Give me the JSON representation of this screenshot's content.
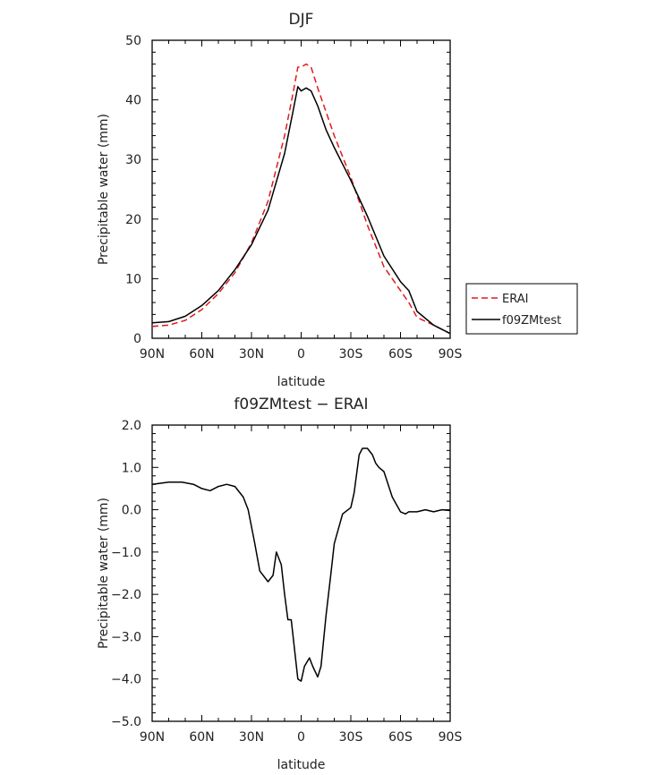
{
  "chart_data": [
    {
      "type": "line",
      "title": "DJF",
      "xlabel": "latitude",
      "ylabel": "Precipitable water (mm)",
      "x_unit_note": "latitude in degrees, positive = North",
      "xlim": [
        90,
        -90
      ],
      "ylim": [
        0,
        50
      ],
      "x_ticks": [
        90,
        60,
        30,
        0,
        -30,
        -60,
        -90
      ],
      "x_tick_labels": [
        "90N",
        "60N",
        "30N",
        "0",
        "30S",
        "60S",
        "90S"
      ],
      "y_ticks": [
        0,
        10,
        20,
        30,
        40,
        50
      ],
      "y_tick_labels": [
        "0",
        "10",
        "20",
        "30",
        "40",
        "50"
      ],
      "legend_position": "outside-right",
      "series": [
        {
          "name": "ERAI",
          "color": "#e41a1c",
          "dash": "dashed",
          "x": [
            90,
            80,
            70,
            60,
            50,
            40,
            30,
            20,
            10,
            5,
            2,
            0,
            -3,
            -6,
            -10,
            -15,
            -20,
            -30,
            -40,
            -50,
            -60,
            -65,
            -70,
            -80,
            -90
          ],
          "y": [
            2.0,
            2.2,
            3.0,
            4.8,
            7.5,
            11,
            16,
            23,
            34,
            41,
            45.5,
            45.5,
            46,
            45.5,
            42,
            38,
            34,
            27,
            19,
            12,
            8,
            6,
            3.5,
            2.2,
            0.8
          ]
        },
        {
          "name": "f09ZMtest",
          "color": "#000000",
          "dash": "solid",
          "x": [
            90,
            80,
            70,
            60,
            50,
            40,
            30,
            20,
            10,
            5,
            2,
            0,
            -3,
            -6,
            -10,
            -15,
            -20,
            -30,
            -40,
            -50,
            -60,
            -65,
            -70,
            -80,
            -90
          ],
          "y": [
            2.6,
            2.8,
            3.7,
            5.5,
            8,
            11.5,
            15.7,
            21.5,
            31,
            38,
            42.2,
            41.5,
            42,
            41.5,
            39,
            35,
            32,
            26.5,
            20.5,
            13.8,
            9.5,
            8,
            4.5,
            2.2,
            0.8
          ]
        }
      ]
    },
    {
      "type": "line",
      "title": "f09ZMtest - ERAI",
      "xlabel": "latitude",
      "ylabel": "Precipitable water (mm)",
      "xlim": [
        90,
        -90
      ],
      "ylim": [
        -5,
        2
      ],
      "x_ticks": [
        90,
        60,
        30,
        0,
        -30,
        -60,
        -90
      ],
      "x_tick_labels": [
        "90N",
        "60N",
        "30N",
        "0",
        "30S",
        "60S",
        "90S"
      ],
      "y_ticks": [
        -5,
        -4,
        -3,
        -2,
        -1,
        0,
        1,
        2
      ],
      "y_tick_labels": [
        "-5.0",
        "-4.0",
        "-3.0",
        "-2.0",
        "-1.0",
        "0.0",
        "1.0",
        "2.0"
      ],
      "series": [
        {
          "name": "",
          "color": "#000000",
          "dash": "solid",
          "x": [
            90,
            80,
            72,
            65,
            60,
            55,
            50,
            45,
            40,
            35,
            32,
            30,
            28,
            25,
            20,
            17,
            15,
            12,
            10,
            8,
            6,
            4,
            2,
            0,
            -2,
            -5,
            -7,
            -10,
            -12,
            -15,
            -18,
            -20,
            -25,
            -30,
            -32,
            -35,
            -37,
            -40,
            -43,
            -45,
            -47,
            -50,
            -55,
            -60,
            -63,
            -65,
            -67,
            -70,
            -75,
            -80,
            -85,
            -90
          ],
          "y": [
            0.6,
            0.65,
            0.65,
            0.6,
            0.5,
            0.45,
            0.55,
            0.6,
            0.55,
            0.3,
            0.0,
            -0.4,
            -0.8,
            -1.45,
            -1.7,
            -1.55,
            -1.0,
            -1.3,
            -2.0,
            -2.6,
            -2.6,
            -3.3,
            -4.0,
            -4.05,
            -3.7,
            -3.5,
            -3.7,
            -3.95,
            -3.7,
            -2.5,
            -1.5,
            -0.8,
            -0.1,
            0.05,
            0.4,
            1.3,
            1.45,
            1.45,
            1.3,
            1.1,
            1.0,
            0.9,
            0.3,
            -0.05,
            -0.1,
            -0.05,
            -0.05,
            -0.05,
            0.0,
            -0.05,
            0.0,
            -0.02
          ]
        }
      ]
    }
  ]
}
